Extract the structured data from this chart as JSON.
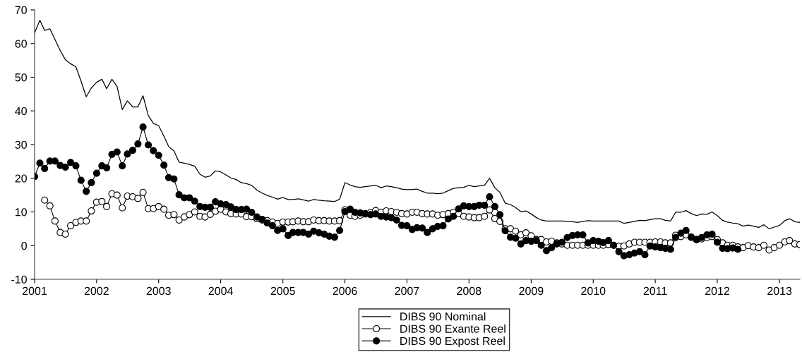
{
  "chart_data": {
    "type": "line",
    "x": [
      "2001-01",
      "2001-02",
      "2001-03",
      "2001-04",
      "2001-05",
      "2001-06",
      "2001-07",
      "2001-08",
      "2001-09",
      "2001-10",
      "2001-11",
      "2001-12",
      "2002-01",
      "2002-02",
      "2002-03",
      "2002-04",
      "2002-05",
      "2002-06",
      "2002-07",
      "2002-08",
      "2002-09",
      "2002-10",
      "2002-11",
      "2002-12",
      "2003-01",
      "2003-02",
      "2003-03",
      "2003-04",
      "2003-05",
      "2003-06",
      "2003-07",
      "2003-08",
      "2003-09",
      "2003-10",
      "2003-11",
      "2003-12",
      "2004-01",
      "2004-02",
      "2004-03",
      "2004-04",
      "2004-05",
      "2004-06",
      "2004-07",
      "2004-08",
      "2004-09",
      "2004-10",
      "2004-11",
      "2004-12",
      "2005-01",
      "2005-02",
      "2005-03",
      "2005-04",
      "2005-05",
      "2005-06",
      "2005-07",
      "2005-08",
      "2005-09",
      "2005-10",
      "2005-11",
      "2005-12",
      "2006-01",
      "2006-02",
      "2006-03",
      "2006-04",
      "2006-05",
      "2006-06",
      "2006-07",
      "2006-08",
      "2006-09",
      "2006-10",
      "2006-11",
      "2006-12",
      "2007-01",
      "2007-02",
      "2007-03",
      "2007-04",
      "2007-05",
      "2007-06",
      "2007-07",
      "2007-08",
      "2007-09",
      "2007-10",
      "2007-11",
      "2007-12",
      "2008-01",
      "2008-02",
      "2008-03",
      "2008-04",
      "2008-05",
      "2008-06",
      "2008-07",
      "2008-08",
      "2008-09",
      "2008-10",
      "2008-11",
      "2008-12",
      "2009-01",
      "2009-02",
      "2009-03",
      "2009-04",
      "2009-05",
      "2009-06",
      "2009-07",
      "2009-08",
      "2009-09",
      "2009-10",
      "2009-11",
      "2009-12",
      "2010-01",
      "2010-02",
      "2010-03",
      "2010-04",
      "2010-05",
      "2010-06",
      "2010-07",
      "2010-08",
      "2010-09",
      "2010-10",
      "2010-11",
      "2010-12",
      "2011-01",
      "2011-02",
      "2011-03",
      "2011-04",
      "2011-05",
      "2011-06",
      "2011-07",
      "2011-08",
      "2011-09",
      "2011-10",
      "2011-11",
      "2011-12",
      "2012-01",
      "2012-02",
      "2012-03",
      "2012-04",
      "2012-05",
      "2012-06",
      "2012-07",
      "2012-08",
      "2012-09",
      "2012-10",
      "2012-11",
      "2012-12",
      "2013-01",
      "2013-02",
      "2013-03",
      "2013-04",
      "2013-05"
    ],
    "xlim": [
      "2001-01",
      "2013-05"
    ],
    "xticks": [
      "2001",
      "2002",
      "2003",
      "2004",
      "2005",
      "2006",
      "2007",
      "2008",
      "2009",
      "2010",
      "2011",
      "2012",
      "2013"
    ],
    "ylim": [
      -10,
      70
    ],
    "yticks": [
      -10,
      0,
      10,
      20,
      30,
      40,
      50,
      60,
      70
    ],
    "grid": false,
    "legend": "bottom",
    "series": [
      {
        "name": "DIBS 90 Nominal",
        "color": "#000000",
        "marker": "none",
        "values": [
          63.2,
          66.9,
          63.9,
          64.4,
          61.2,
          57.9,
          55.2,
          54.0,
          53.1,
          48.9,
          44.2,
          46.8,
          48.5,
          49.4,
          46.6,
          49.4,
          47.3,
          40.4,
          43.0,
          41.2,
          41.2,
          44.5,
          38.6,
          36.3,
          35.6,
          32.5,
          29.4,
          28.1,
          24.8,
          24.5,
          24.1,
          23.6,
          21.2,
          20.3,
          20.7,
          22.2,
          21.9,
          21.0,
          20.1,
          19.6,
          18.7,
          18.4,
          17.9,
          16.5,
          15.6,
          14.9,
          14.4,
          13.8,
          14.3,
          13.7,
          13.7,
          13.9,
          13.6,
          13.2,
          13.7,
          13.5,
          13.3,
          13.2,
          13.1,
          13.8,
          18.7,
          18.0,
          17.5,
          17.3,
          17.5,
          17.7,
          17.9,
          17.2,
          17.7,
          17.5,
          17.2,
          16.8,
          16.6,
          16.7,
          16.8,
          16.1,
          15.6,
          15.6,
          15.4,
          15.6,
          16.3,
          17.0,
          17.2,
          17.3,
          17.9,
          17.5,
          17.7,
          17.9,
          20.0,
          17.2,
          15.8,
          12.6,
          12.2,
          11.3,
          10.1,
          10.3,
          9.4,
          8.3,
          7.6,
          7.3,
          7.3,
          7.3,
          7.3,
          7.2,
          7.1,
          6.9,
          7.2,
          7.4,
          7.3,
          7.3,
          7.3,
          7.3,
          7.3,
          7.3,
          6.6,
          6.9,
          7.2,
          7.5,
          7.4,
          7.7,
          8.0,
          8.0,
          7.5,
          7.3,
          9.9,
          9.9,
          10.4,
          9.5,
          8.9,
          9.4,
          9.3,
          10.0,
          8.9,
          7.5,
          7.0,
          6.7,
          6.5,
          5.8,
          6.1,
          5.8,
          5.4,
          6.2,
          5.0,
          5.5,
          6.0,
          7.4,
          8.0,
          7.1,
          6.9
        ]
      },
      {
        "name": "DIBS 90 Exante Reel",
        "color": "#000000",
        "marker": "circle",
        "values": [
          null,
          null,
          13.5,
          11.8,
          7.3,
          3.9,
          3.4,
          5.9,
          6.9,
          7.3,
          7.3,
          10.3,
          12.9,
          13.1,
          11.6,
          15.4,
          15.0,
          11.2,
          14.7,
          14.5,
          14.0,
          15.8,
          11.0,
          11.0,
          11.6,
          10.8,
          9.0,
          9.2,
          7.6,
          8.5,
          9.2,
          10.0,
          8.7,
          8.5,
          9.3,
          10.2,
          10.8,
          10.0,
          9.5,
          9.4,
          9.4,
          8.6,
          8.6,
          8.0,
          7.6,
          7.4,
          7.0,
          6.6,
          7.0,
          7.0,
          7.1,
          7.3,
          7.1,
          7.1,
          7.6,
          7.4,
          7.4,
          7.3,
          7.3,
          7.4,
          10.6,
          9.0,
          8.7,
          9.0,
          9.5,
          9.9,
          10.4,
          9.9,
          10.3,
          10.1,
          9.9,
          9.5,
          9.4,
          9.9,
          9.9,
          9.5,
          9.4,
          9.4,
          9.0,
          9.2,
          9.5,
          9.9,
          9.5,
          8.7,
          8.5,
          8.3,
          8.3,
          8.7,
          10.6,
          8.0,
          7.2,
          5.0,
          5.0,
          4.3,
          3.2,
          3.8,
          2.9,
          1.8,
          1.8,
          1.1,
          1.3,
          0.8,
          0.5,
          0.1,
          0.1,
          0.1,
          0.1,
          0.1,
          0.1,
          0.1,
          0.1,
          0.3,
          0.1,
          -0.2,
          -0.1,
          0.5,
          1.0,
          1.0,
          1.0,
          1.0,
          1.1,
          1.1,
          0.8,
          0.8,
          3.1,
          2.7,
          3.2,
          2.5,
          1.8,
          2.0,
          2.4,
          2.7,
          1.8,
          0.8,
          0.1,
          0.1,
          -0.4,
          -0.6,
          0.0,
          -0.4,
          -0.6,
          0.1,
          -1.3,
          -0.6,
          0.1,
          1.1,
          1.5,
          0.5,
          0.3
        ]
      },
      {
        "name": "DIBS 90 Expost Reel",
        "color": "#000000",
        "marker": "circle",
        "values": [
          20.5,
          24.5,
          22.9,
          25.1,
          25.1,
          23.8,
          23.3,
          24.7,
          23.7,
          19.4,
          16.1,
          18.7,
          21.5,
          23.7,
          23.1,
          27.1,
          27.8,
          23.7,
          27.2,
          28.3,
          30.2,
          35.2,
          29.9,
          28.2,
          26.8,
          23.9,
          20.2,
          19.8,
          15.1,
          14.2,
          14.2,
          13.2,
          11.6,
          11.4,
          11.4,
          13.0,
          12.4,
          12.2,
          11.5,
          10.7,
          10.7,
          10.8,
          9.9,
          8.5,
          7.8,
          6.7,
          5.9,
          4.5,
          5.0,
          3.0,
          3.9,
          3.9,
          3.9,
          3.4,
          4.3,
          3.8,
          3.4,
          2.8,
          2.5,
          4.5,
          10.1,
          10.8,
          9.9,
          9.7,
          9.4,
          9.2,
          9.4,
          8.7,
          8.5,
          8.3,
          7.6,
          6.0,
          5.9,
          4.8,
          5.3,
          5.2,
          3.9,
          5.0,
          5.7,
          5.9,
          7.9,
          8.7,
          10.9,
          11.8,
          11.6,
          11.6,
          12.0,
          12.0,
          14.5,
          11.6,
          9.2,
          4.4,
          2.5,
          2.2,
          0.5,
          1.5,
          1.3,
          1.5,
          0.1,
          -1.5,
          -0.6,
          0.5,
          1.0,
          2.4,
          3.0,
          3.2,
          3.2,
          0.8,
          1.5,
          1.3,
          0.9,
          1.5,
          0.1,
          -1.8,
          -3.0,
          -2.7,
          -2.2,
          -1.8,
          -2.7,
          -0.1,
          -0.4,
          -0.6,
          -0.8,
          -1.1,
          2.4,
          3.7,
          4.5,
          2.5,
          1.8,
          2.4,
          3.2,
          3.4,
          1.0,
          -0.8,
          -0.9,
          -0.7,
          -1.1,
          null,
          null,
          null,
          null,
          null,
          null,
          null,
          null,
          null,
          null,
          null,
          null
        ]
      }
    ]
  }
}
